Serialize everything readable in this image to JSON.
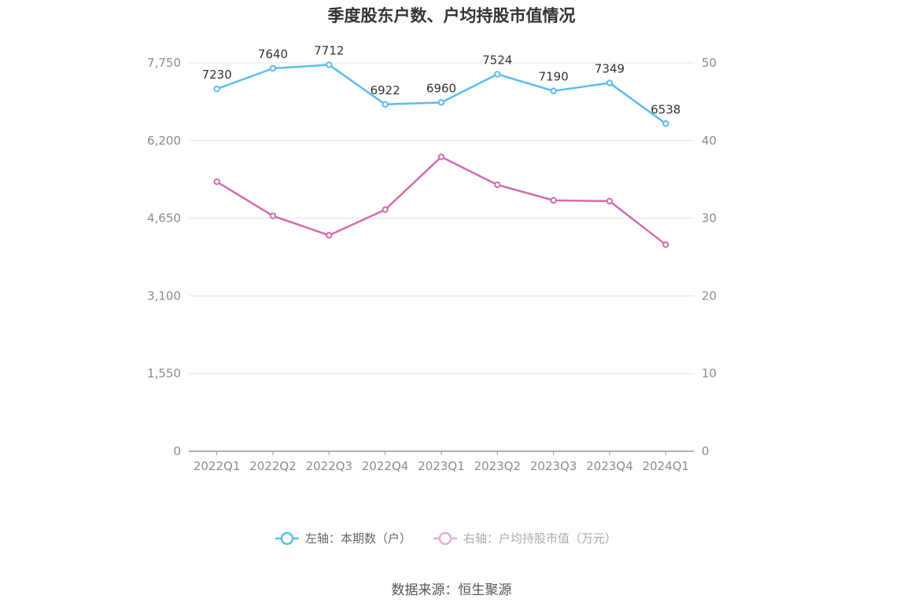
{
  "title": "季度股东户数、户均持股市值情况",
  "source": "数据来源：恒生聚源",
  "colors": {
    "series_left": "#5bbdee",
    "series_right": "#d36bb0",
    "grid": "#e3e3ec",
    "axis": "#999999"
  },
  "chart_data": {
    "type": "line",
    "title": "季度股东户数、户均持股市值情况",
    "categories": [
      "2022Q1",
      "2022Q2",
      "2022Q3",
      "2022Q4",
      "2023Q1",
      "2023Q2",
      "2023Q3",
      "2023Q4",
      "2024Q1"
    ],
    "y_left": {
      "min": 0,
      "max": 7750,
      "ticks": [
        0,
        1550,
        3100,
        4650,
        6200,
        7750
      ],
      "tick_labels": [
        "0",
        "1,550",
        "3,100",
        "4,650",
        "6,200",
        "7,750"
      ]
    },
    "y_right": {
      "min": 0,
      "max": 50,
      "ticks": [
        0,
        10,
        20,
        30,
        40,
        50
      ],
      "tick_labels": [
        "0",
        "10",
        "20",
        "30",
        "40",
        "50"
      ]
    },
    "series": [
      {
        "name": "左轴：本期数（户）",
        "axis": "left",
        "values": [
          7230,
          7640,
          7712,
          6922,
          6960,
          7524,
          7190,
          7349,
          6538
        ],
        "labels": [
          "7230",
          "7640",
          "7712",
          "6922",
          "6960",
          "7524",
          "7190",
          "7349",
          "6538"
        ]
      },
      {
        "name": "右轴：户均持股市值（万元）",
        "axis": "right",
        "values": [
          34.7,
          30.3,
          27.8,
          31.1,
          37.9,
          34.3,
          32.3,
          32.2,
          26.6
        ]
      }
    ],
    "grid": true,
    "legend_position": "bottom-center"
  }
}
